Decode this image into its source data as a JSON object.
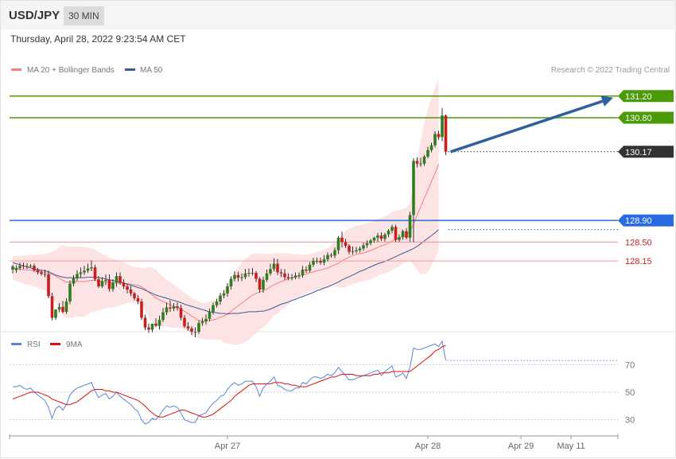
{
  "header": {
    "pair": "USD/JPY",
    "timeframe": "30 MIN",
    "datetime": "Thursday, April 28, 2022 9:23:54 AM CET"
  },
  "main_panel": {
    "legend": [
      {
        "label": "MA 20 + Bollinger Bands",
        "color": "#f08080"
      },
      {
        "label": "MA 50",
        "color": "#3a5a9a"
      }
    ],
    "credit": "Research © 2022 Trading Central",
    "levels": [
      {
        "value": 131.2,
        "label": "131.20",
        "style": "resistance",
        "color": "#4a9a0a"
      },
      {
        "value": 130.8,
        "label": "130.80",
        "style": "resistance",
        "color": "#4a9a0a"
      },
      {
        "value": 128.9,
        "label": "128.90",
        "style": "pivot",
        "color": "#2a6ae0"
      },
      {
        "value": 128.5,
        "label": "128.50",
        "style": "support",
        "color": "#cc2020"
      },
      {
        "value": 128.15,
        "label": "128.15",
        "style": "support",
        "color": "#cc2020"
      }
    ],
    "last_price": {
      "value": 130.17,
      "label": "130.17",
      "color": "#333333"
    },
    "arrow_color": "#2e5f9e"
  },
  "rsi_panel": {
    "legend": [
      {
        "label": "RSI",
        "color": "#5b84d8"
      },
      {
        "label": "9MA",
        "color": "#dd1111"
      }
    ],
    "levels": [
      {
        "value": 70,
        "label": "70"
      },
      {
        "value": 50,
        "label": "50"
      },
      {
        "value": 30,
        "label": "30"
      }
    ]
  },
  "x_axis": {
    "ticks": [
      {
        "label": "Apr 27",
        "index": 60
      },
      {
        "label": "Apr 28",
        "index": 116
      },
      {
        "label": "Apr 29",
        "index": 142
      },
      {
        "label": "May 11",
        "index": 156
      }
    ]
  },
  "chart_data": {
    "type": "candlestick",
    "title": "USD/JPY",
    "ylim": [
      126.9,
      131.55
    ],
    "rsi_ylim": [
      20,
      80
    ],
    "candles": {
      "open": [
        127.99,
        127.98,
        128.02,
        128.06,
        128.05,
        128.05,
        128.06,
        127.98,
        127.94,
        127.91,
        127.9,
        127.5,
        127.1,
        127.25,
        127.3,
        127.21,
        127.4,
        127.73,
        127.83,
        127.91,
        127.94,
        127.97,
        128.01,
        128.03,
        127.81,
        127.68,
        127.78,
        127.8,
        127.63,
        127.75,
        127.87,
        127.75,
        127.68,
        127.62,
        127.55,
        127.46,
        127.4,
        127.1,
        126.92,
        126.88,
        126.99,
        126.95,
        127.06,
        127.2,
        127.29,
        127.27,
        127.31,
        127.28,
        127.1,
        126.94,
        126.9,
        126.84,
        126.84,
        127.0,
        127.03,
        127.08,
        127.21,
        127.33,
        127.4,
        127.51,
        127.55,
        127.68,
        127.82,
        127.89,
        127.84,
        127.85,
        127.92,
        127.93,
        127.93,
        127.82,
        127.62,
        127.8,
        127.92,
        128.0,
        128.1,
        127.94,
        127.92,
        127.85,
        127.83,
        127.84,
        127.88,
        127.88,
        127.99,
        127.97,
        128.08,
        128.15,
        128.15,
        128.12,
        128.18,
        128.26,
        128.25,
        128.35,
        128.58,
        128.5,
        128.43,
        128.32,
        128.33,
        128.35,
        128.38,
        128.44,
        128.48,
        128.53,
        128.58,
        128.62,
        128.56,
        128.64,
        128.71,
        128.78,
        128.54,
        128.59,
        128.7,
        128.58,
        129.0,
        130.0,
        129.95,
        129.95,
        130.08,
        130.2,
        130.29,
        130.5,
        130.44,
        130.84
      ],
      "high": [
        128.08,
        128.07,
        128.12,
        128.12,
        128.11,
        128.09,
        128.1,
        128.02,
        127.98,
        127.99,
        127.97,
        127.56,
        127.26,
        127.37,
        127.41,
        127.46,
        127.79,
        127.89,
        127.98,
        128.03,
        128.06,
        128.1,
        128.16,
        128.08,
        127.87,
        127.85,
        127.9,
        127.9,
        127.81,
        127.94,
        127.94,
        127.81,
        127.73,
        127.69,
        127.58,
        127.52,
        127.45,
        127.16,
        126.99,
        126.99,
        127.09,
        127.14,
        127.28,
        127.38,
        127.42,
        127.37,
        127.38,
        127.34,
        127.15,
        127.02,
        126.94,
        126.92,
        127.05,
        127.1,
        127.16,
        127.27,
        127.38,
        127.45,
        127.56,
        127.61,
        127.74,
        127.87,
        127.96,
        127.95,
        127.92,
        128.0,
        128.01,
        128.02,
        127.96,
        127.85,
        127.86,
        127.99,
        128.1,
        128.2,
        128.19,
        128.0,
        128.0,
        127.92,
        127.91,
        127.94,
        127.94,
        128.06,
        128.05,
        128.13,
        128.21,
        128.21,
        128.21,
        128.26,
        128.31,
        128.3,
        128.4,
        128.61,
        128.69,
        128.56,
        128.46,
        128.42,
        128.41,
        128.42,
        128.49,
        128.53,
        128.56,
        128.6,
        128.67,
        128.68,
        128.67,
        128.74,
        128.82,
        128.82,
        128.64,
        128.73,
        128.76,
        129.06,
        130.05,
        130.07,
        130.06,
        130.11,
        130.26,
        130.34,
        130.55,
        130.56,
        130.98,
        130.86
      ],
      "low": [
        127.92,
        127.93,
        127.98,
        128.0,
        128.0,
        128.03,
        127.95,
        127.9,
        127.88,
        127.85,
        127.46,
        127.05,
        127.06,
        127.2,
        127.18,
        127.17,
        127.35,
        127.68,
        127.78,
        127.84,
        127.89,
        127.93,
        127.96,
        127.78,
        127.65,
        127.65,
        127.7,
        127.58,
        127.58,
        127.67,
        127.71,
        127.63,
        127.55,
        127.5,
        127.42,
        127.35,
        127.06,
        126.87,
        126.82,
        126.83,
        126.93,
        126.88,
        127.02,
        127.15,
        127.21,
        127.22,
        127.23,
        127.05,
        126.91,
        126.86,
        126.78,
        126.74,
        126.8,
        126.95,
        126.97,
        127.03,
        127.16,
        127.29,
        127.34,
        127.46,
        127.49,
        127.62,
        127.77,
        127.77,
        127.78,
        127.81,
        127.86,
        127.88,
        127.76,
        127.56,
        127.56,
        127.76,
        127.88,
        127.96,
        127.89,
        127.85,
        127.8,
        127.79,
        127.79,
        127.81,
        127.82,
        127.84,
        127.93,
        127.94,
        128.04,
        128.1,
        128.08,
        128.07,
        128.14,
        128.21,
        128.2,
        128.28,
        128.4,
        128.39,
        128.27,
        128.27,
        128.29,
        128.31,
        128.34,
        128.39,
        128.44,
        128.49,
        128.5,
        128.52,
        128.51,
        128.59,
        128.66,
        128.5,
        128.5,
        128.54,
        128.55,
        128.51,
        128.5,
        129.88,
        129.89,
        129.91,
        130.05,
        130.16,
        130.25,
        130.39,
        130.37,
        130.11
      ],
      "close": [
        128.05,
        128.02,
        128.06,
        128.05,
        128.05,
        128.06,
        127.98,
        127.94,
        127.91,
        127.9,
        127.5,
        127.1,
        127.25,
        127.3,
        127.21,
        127.4,
        127.73,
        127.83,
        127.91,
        127.94,
        127.97,
        128.01,
        128.03,
        127.81,
        127.68,
        127.78,
        127.8,
        127.63,
        127.75,
        127.87,
        127.75,
        127.68,
        127.62,
        127.55,
        127.46,
        127.4,
        127.1,
        126.92,
        126.88,
        126.99,
        126.95,
        127.06,
        127.2,
        127.29,
        127.27,
        127.31,
        127.28,
        127.1,
        126.94,
        126.9,
        126.84,
        126.84,
        127.0,
        127.03,
        127.08,
        127.21,
        127.33,
        127.4,
        127.51,
        127.55,
        127.68,
        127.82,
        127.89,
        127.84,
        127.85,
        127.92,
        127.93,
        127.93,
        127.82,
        127.62,
        127.8,
        127.92,
        128.0,
        128.1,
        127.94,
        127.92,
        127.85,
        127.83,
        127.84,
        127.88,
        127.88,
        127.99,
        127.97,
        128.08,
        128.15,
        128.15,
        128.12,
        128.18,
        128.26,
        128.25,
        128.35,
        128.58,
        128.5,
        128.43,
        128.32,
        128.33,
        128.35,
        128.38,
        128.44,
        128.48,
        128.53,
        128.58,
        128.62,
        128.56,
        128.64,
        128.71,
        128.78,
        128.54,
        128.59,
        128.7,
        128.58,
        129.0,
        130.0,
        129.95,
        129.95,
        130.08,
        130.2,
        130.29,
        130.5,
        130.44,
        130.84,
        130.17
      ]
    },
    "ma20": [
      128.02,
      128.01,
      128.0,
      127.99,
      127.98,
      127.98,
      127.97,
      127.96,
      127.95,
      127.94,
      127.92,
      127.9,
      127.87,
      127.83,
      127.79,
      127.76,
      127.76,
      127.76,
      127.77,
      127.77,
      127.77,
      127.78,
      127.79,
      127.79,
      127.78,
      127.77,
      127.76,
      127.75,
      127.74,
      127.74,
      127.74,
      127.74,
      127.73,
      127.72,
      127.71,
      127.7,
      127.67,
      127.63,
      127.57,
      127.52,
      127.47,
      127.43,
      127.4,
      127.37,
      127.34,
      127.31,
      127.29,
      127.26,
      127.22,
      127.18,
      127.13,
      127.09,
      127.05,
      127.04,
      127.04,
      127.05,
      127.06,
      127.08,
      127.11,
      127.13,
      127.17,
      127.22,
      127.27,
      127.32,
      127.37,
      127.42,
      127.47,
      127.52,
      127.55,
      127.58,
      127.6,
      127.63,
      127.67,
      127.71,
      127.74,
      127.77,
      127.79,
      127.82,
      127.84,
      127.86,
      127.88,
      127.89,
      127.91,
      127.93,
      127.95,
      127.97,
      127.98,
      128.0,
      128.02,
      128.05,
      128.08,
      128.11,
      128.15,
      128.19,
      128.22,
      128.25,
      128.27,
      128.29,
      128.3,
      128.32,
      128.34,
      128.37,
      128.4,
      128.43,
      128.45,
      128.48,
      128.52,
      128.55,
      128.57,
      128.61,
      128.64,
      128.69,
      128.83,
      129.0,
      129.15,
      129.31,
      129.46,
      129.62,
      129.77,
      129.94
    ],
    "bb_upper": [
      128.24,
      128.24,
      128.24,
      128.25,
      128.26,
      128.26,
      128.26,
      128.27,
      128.28,
      128.28,
      128.3,
      128.32,
      128.36,
      128.4,
      128.44,
      128.42,
      128.42,
      128.42,
      128.42,
      128.42,
      128.42,
      128.4,
      128.38,
      128.36,
      128.32,
      128.28,
      128.25,
      128.21,
      128.19,
      128.17,
      128.15,
      128.12,
      128.09,
      128.06,
      128.04,
      128.03,
      128.02,
      128.02,
      128.04,
      128.03,
      127.99,
      127.92,
      127.86,
      127.8,
      127.76,
      127.71,
      127.67,
      127.61,
      127.56,
      127.51,
      127.47,
      127.43,
      127.4,
      127.37,
      127.38,
      127.4,
      127.42,
      127.46,
      127.53,
      127.62,
      127.72,
      127.83,
      127.94,
      128.04,
      128.12,
      128.19,
      128.24,
      128.28,
      128.29,
      128.29,
      128.28,
      128.28,
      128.28,
      128.29,
      128.3,
      128.3,
      128.29,
      128.29,
      128.28,
      128.28,
      128.27,
      128.27,
      128.27,
      128.28,
      128.3,
      128.32,
      128.33,
      128.36,
      128.39,
      128.43,
      128.48,
      128.56,
      128.64,
      128.71,
      128.75,
      128.77,
      128.8,
      128.81,
      128.83,
      128.85,
      128.87,
      128.9,
      128.93,
      128.95,
      128.98,
      129.01,
      129.06,
      129.08,
      129.09,
      129.11,
      129.14,
      129.23,
      129.58,
      130.02,
      130.4,
      130.71,
      130.97,
      131.17,
      131.35,
      131.55
    ],
    "bb_lower": [
      127.8,
      127.78,
      127.76,
      127.73,
      127.71,
      127.7,
      127.68,
      127.66,
      127.62,
      127.6,
      127.54,
      127.48,
      127.38,
      127.26,
      127.14,
      127.1,
      127.1,
      127.1,
      127.12,
      127.12,
      127.12,
      127.16,
      127.2,
      127.22,
      127.24,
      127.26,
      127.27,
      127.29,
      127.29,
      127.31,
      127.33,
      127.36,
      127.37,
      127.38,
      127.38,
      127.37,
      127.32,
      127.24,
      127.1,
      127.01,
      126.95,
      126.94,
      126.94,
      126.94,
      126.92,
      126.91,
      126.91,
      126.91,
      126.88,
      126.85,
      126.79,
      126.75,
      126.7,
      126.71,
      126.7,
      126.7,
      126.7,
      126.7,
      126.69,
      126.64,
      126.62,
      126.61,
      126.6,
      126.6,
      126.62,
      126.65,
      126.7,
      126.76,
      126.81,
      126.87,
      126.92,
      126.98,
      127.06,
      127.13,
      127.18,
      127.24,
      127.29,
      127.35,
      127.4,
      127.44,
      127.49,
      127.51,
      127.55,
      127.58,
      127.6,
      127.62,
      127.63,
      127.64,
      127.65,
      127.67,
      127.68,
      127.66,
      127.66,
      127.67,
      127.69,
      127.73,
      127.74,
      127.77,
      127.77,
      127.79,
      127.81,
      127.84,
      127.87,
      127.91,
      127.92,
      127.95,
      127.98,
      128.02,
      128.05,
      128.11,
      128.14,
      128.15,
      128.08,
      127.98,
      127.9,
      127.91,
      127.95,
      128.07,
      128.19,
      128.33
    ],
    "ma50": [
      128.12,
      128.1,
      128.08,
      128.06,
      128.04,
      128.02,
      128.0,
      127.99,
      127.98,
      127.97,
      127.95,
      127.92,
      127.89,
      127.87,
      127.85,
      127.84,
      127.84,
      127.84,
      127.84,
      127.84,
      127.84,
      127.85,
      127.85,
      127.85,
      127.84,
      127.83,
      127.82,
      127.8,
      127.79,
      127.77,
      127.76,
      127.74,
      127.72,
      127.7,
      127.68,
      127.66,
      127.64,
      127.61,
      127.58,
      127.55,
      127.52,
      127.5,
      127.48,
      127.46,
      127.44,
      127.42,
      127.4,
      127.38,
      127.35,
      127.33,
      127.31,
      127.29,
      127.27,
      127.25,
      127.23,
      127.21,
      127.2,
      127.19,
      127.18,
      127.18,
      127.17,
      127.18,
      127.18,
      127.18,
      127.19,
      127.2,
      127.21,
      127.21,
      127.21,
      127.22,
      127.22,
      127.24,
      127.26,
      127.29,
      127.32,
      127.35,
      127.37,
      127.39,
      127.42,
      127.44,
      127.47,
      127.49,
      127.52,
      127.54,
      127.57,
      127.6,
      127.62,
      127.65,
      127.67,
      127.7,
      127.73,
      127.76,
      127.8,
      127.83,
      127.86,
      127.89,
      127.92,
      127.96,
      127.98,
      128.01,
      128.04,
      128.07,
      128.1,
      128.12,
      128.14,
      128.17,
      128.2,
      128.23,
      128.26,
      128.29,
      128.32,
      128.35,
      128.38,
      128.42,
      128.47,
      128.52,
      128.57,
      128.62,
      128.67,
      128.73
    ],
    "rsi": [
      54,
      54,
      55,
      53,
      52,
      53,
      50,
      48,
      46,
      44,
      39,
      31,
      38,
      40,
      37,
      41,
      48,
      51,
      53,
      54,
      55,
      56,
      57,
      51,
      46,
      48,
      49,
      45,
      47,
      50,
      47,
      45,
      43,
      41,
      38,
      36,
      30,
      27,
      28,
      31,
      30,
      33,
      37,
      40,
      39,
      40,
      39,
      35,
      30,
      29,
      28,
      28,
      33,
      34,
      35,
      39,
      42,
      44,
      47,
      48,
      52,
      55,
      57,
      55,
      56,
      58,
      58,
      58,
      54,
      47,
      53,
      56,
      58,
      61,
      55,
      54,
      52,
      51,
      51,
      53,
      53,
      57,
      56,
      59,
      61,
      61,
      60,
      61,
      63,
      62,
      64,
      68,
      65,
      62,
      59,
      59,
      60,
      61,
      62,
      63,
      64,
      65,
      66,
      62,
      65,
      67,
      69,
      61,
      62,
      64,
      60,
      68,
      82,
      81,
      81,
      82,
      83,
      84,
      85,
      83,
      87,
      73
    ],
    "rsi_ma": [
      45,
      46,
      47,
      48,
      49,
      50,
      50,
      50,
      49,
      48,
      47,
      45,
      44,
      43,
      42,
      41,
      41,
      42,
      43,
      45,
      47,
      49,
      51,
      52,
      52,
      52,
      51,
      51,
      50,
      50,
      49,
      48,
      47,
      46,
      45,
      44,
      42,
      40,
      37,
      35,
      33,
      32,
      32,
      33,
      34,
      35,
      36,
      37,
      37,
      36,
      35,
      34,
      33,
      32,
      32,
      33,
      34,
      36,
      38,
      40,
      42,
      44,
      47,
      49,
      51,
      53,
      55,
      56,
      56,
      56,
      56,
      56,
      56,
      57,
      57,
      57,
      56,
      56,
      55,
      55,
      54,
      54,
      54,
      55,
      56,
      57,
      58,
      59,
      60,
      61,
      61,
      62,
      63,
      63,
      63,
      63,
      62,
      62,
      62,
      62,
      62,
      63,
      63,
      64,
      64,
      64,
      65,
      65,
      65,
      65,
      65,
      65,
      67,
      69,
      71,
      73,
      75,
      77,
      80,
      81,
      83,
      84
    ]
  }
}
